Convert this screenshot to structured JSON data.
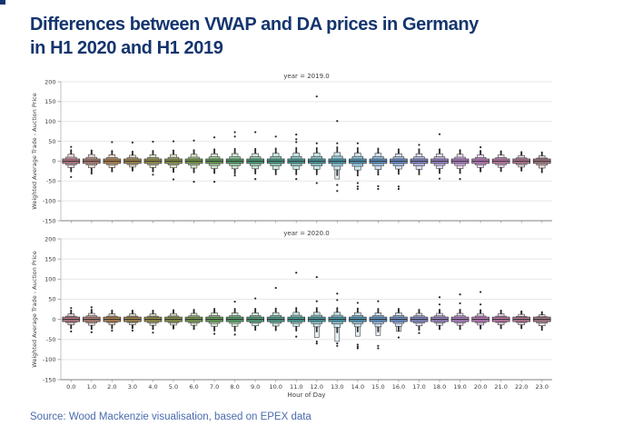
{
  "page": {
    "title_line1": "Differences between VWAP and DA prices in Germany",
    "title_line2": "in H1 2020 and H1 2019",
    "title_color": "#14356e",
    "corner_color": "#14356e",
    "source": "Source: Wood Mackenzie visualisation, based on EPEX data",
    "source_color": "#4a6bae"
  },
  "chart_data": {
    "type": "boxen",
    "xlabel": "Hour of Day",
    "ylabel": "Weighted Average Trade - Auction Price",
    "x_tick_labels": [
      "0.0",
      "1.0",
      "2.0",
      "3.0",
      "4.0",
      "5.0",
      "6.0",
      "7.0",
      "8.0",
      "9.0",
      "10.0",
      "11.0",
      "12.0",
      "13.0",
      "14.0",
      "15.0",
      "16.0",
      "17.0",
      "18.0",
      "19.0",
      "20.0",
      "21.0",
      "22.0",
      "23.0"
    ],
    "yticks": [
      200,
      150,
      100,
      50,
      0,
      -50,
      -100,
      -150
    ],
    "ylim": [
      -150,
      200
    ],
    "grid": true,
    "style": {
      "edge": "#3a3a3a",
      "median": "#2d2d2d",
      "dot": "#2a2a2a",
      "grid_color": "#e7e7e7",
      "spine_left": "#c2c2c2",
      "spine_bottom": "#9a9a9a",
      "tick_text": "#3d3d3d"
    },
    "palette": [
      "#c77f90",
      "#bd8679",
      "#c08b51",
      "#b0914e",
      "#a19a4b",
      "#909f49",
      "#7ca54d",
      "#67a857",
      "#56aa69",
      "#4faa7e",
      "#4ca890",
      "#49a79f",
      "#48a6ab",
      "#4aa4b8",
      "#53a1c6",
      "#5f9dd3",
      "#6f97da",
      "#8a90d8",
      "#a48ad3",
      "#ba85d3",
      "#cb80cb",
      "#cf7fb7",
      "#c57f9e",
      "#b5808c"
    ],
    "panels": [
      {
        "title": "year = 2019.0",
        "glyphs": [
          {
            "hi": 28,
            "lo": -26,
            "out_hi": [
              36
            ],
            "out_lo": [
              -40
            ]
          },
          {
            "hi": 27,
            "lo": -27,
            "out_hi": [],
            "out_lo": [
              -31
            ]
          },
          {
            "hi": 26,
            "lo": -26,
            "out_hi": [
              48
            ],
            "out_lo": []
          },
          {
            "hi": 24,
            "lo": -24,
            "out_hi": [
              47
            ],
            "out_lo": []
          },
          {
            "hi": 26,
            "lo": -26,
            "out_hi": [
              49
            ],
            "out_lo": [
              -34
            ]
          },
          {
            "hi": 27,
            "lo": -27,
            "out_hi": [
              50
            ],
            "out_lo": [
              -46
            ]
          },
          {
            "hi": 28,
            "lo": -28,
            "out_hi": [
              52
            ],
            "out_lo": [
              -52
            ]
          },
          {
            "hi": 30,
            "lo": -30,
            "out_hi": [
              60
            ],
            "out_lo": [
              -52
            ]
          },
          {
            "hi": 31,
            "lo": -31,
            "out_hi": [
              62,
              73
            ],
            "out_lo": [
              -36
            ]
          },
          {
            "hi": 31,
            "lo": -31,
            "out_hi": [
              73
            ],
            "out_lo": [
              -45
            ]
          },
          {
            "hi": 32,
            "lo": -33,
            "out_hi": [
              62
            ],
            "out_lo": []
          },
          {
            "hi": 33,
            "lo": -33,
            "out_hi": [
              48,
              55,
              67
            ],
            "out_lo": [
              -45
            ]
          },
          {
            "hi": 33,
            "lo": -33,
            "out_hi": [
              45,
              163
            ],
            "out_lo": [
              -55
            ]
          },
          {
            "hi": 35,
            "lo": -35,
            "out_hi": [
              45,
              101
            ],
            "out_lo": [
              -60,
              -75
            ],
            "tail_lo": -45
          },
          {
            "hi": 33,
            "lo": -36,
            "out_hi": [
              45
            ],
            "out_lo": [
              -55,
              -64,
              -70
            ]
          },
          {
            "hi": 32,
            "lo": -34,
            "out_hi": [],
            "out_lo": [
              -63,
              -70
            ]
          },
          {
            "hi": 30,
            "lo": -32,
            "out_hi": [],
            "out_lo": [
              -64,
              -70
            ]
          },
          {
            "hi": 30,
            "lo": -33,
            "out_hi": [
              41
            ],
            "out_lo": []
          },
          {
            "hi": 30,
            "lo": -30,
            "out_hi": [
              68
            ],
            "out_lo": [
              -44
            ]
          },
          {
            "hi": 28,
            "lo": -30,
            "out_hi": [],
            "out_lo": [
              -45
            ]
          },
          {
            "hi": 26,
            "lo": -26,
            "out_hi": [
              35
            ],
            "out_lo": []
          },
          {
            "hi": 25,
            "lo": -25,
            "out_hi": [],
            "out_lo": []
          },
          {
            "hi": 23,
            "lo": -24,
            "out_hi": [],
            "out_lo": []
          },
          {
            "hi": 22,
            "lo": -28,
            "out_hi": [],
            "out_lo": []
          }
        ]
      },
      {
        "title": "year = 2020.0",
        "glyphs": [
          {
            "hi": 22,
            "lo": -22,
            "out_hi": [
              28
            ],
            "out_lo": [
              -30
            ]
          },
          {
            "hi": 24,
            "lo": -24,
            "out_hi": [
              30
            ],
            "out_lo": [
              -32
            ]
          },
          {
            "hi": 22,
            "lo": -22,
            "out_hi": [],
            "out_lo": [
              -28
            ]
          },
          {
            "hi": 22,
            "lo": -22,
            "out_hi": [],
            "out_lo": [
              -28
            ]
          },
          {
            "hi": 22,
            "lo": -24,
            "out_hi": [],
            "out_lo": [
              -33
            ]
          },
          {
            "hi": 23,
            "lo": -23,
            "out_hi": [],
            "out_lo": []
          },
          {
            "hi": 24,
            "lo": -24,
            "out_hi": [],
            "out_lo": []
          },
          {
            "hi": 26,
            "lo": -28,
            "out_hi": [],
            "out_lo": [
              -36
            ]
          },
          {
            "hi": 26,
            "lo": -28,
            "out_hi": [
              44
            ],
            "out_lo": [
              -38
            ]
          },
          {
            "hi": 26,
            "lo": -26,
            "out_hi": [
              52
            ],
            "out_lo": []
          },
          {
            "hi": 27,
            "lo": -27,
            "out_hi": [
              78
            ],
            "out_lo": []
          },
          {
            "hi": 28,
            "lo": -28,
            "out_hi": [
              116
            ],
            "out_lo": [
              -43
            ]
          },
          {
            "hi": 28,
            "lo": -30,
            "out_hi": [
              45,
              105
            ],
            "out_lo": [
              -55,
              -60
            ],
            "tail_lo": -45
          },
          {
            "hi": 28,
            "lo": -32,
            "out_hi": [
              48,
              64
            ],
            "out_lo": [
              -60,
              -66
            ],
            "tail_lo": -55
          },
          {
            "hi": 27,
            "lo": -30,
            "out_hi": [
              41
            ],
            "out_lo": [
              -63,
              -68,
              -72
            ],
            "tail_lo": -42
          },
          {
            "hi": 26,
            "lo": -30,
            "out_hi": [
              45
            ],
            "out_lo": [
              -66,
              -72
            ],
            "tail_lo": -40
          },
          {
            "hi": 26,
            "lo": -28,
            "out_hi": [],
            "out_lo": [
              -45
            ],
            "tail_lo": -30
          },
          {
            "hi": 24,
            "lo": -26,
            "out_hi": [],
            "out_lo": [
              -34
            ]
          },
          {
            "hi": 24,
            "lo": -24,
            "out_hi": [
              37,
              55
            ],
            "out_lo": []
          },
          {
            "hi": 24,
            "lo": -24,
            "out_hi": [
              40,
              62
            ],
            "out_lo": []
          },
          {
            "hi": 23,
            "lo": -23,
            "out_hi": [
              37,
              68
            ],
            "out_lo": []
          },
          {
            "hi": 22,
            "lo": -22,
            "out_hi": [],
            "out_lo": []
          },
          {
            "hi": 20,
            "lo": -22,
            "out_hi": [],
            "out_lo": []
          },
          {
            "hi": 18,
            "lo": -26,
            "out_hi": [],
            "out_lo": []
          }
        ]
      }
    ]
  }
}
